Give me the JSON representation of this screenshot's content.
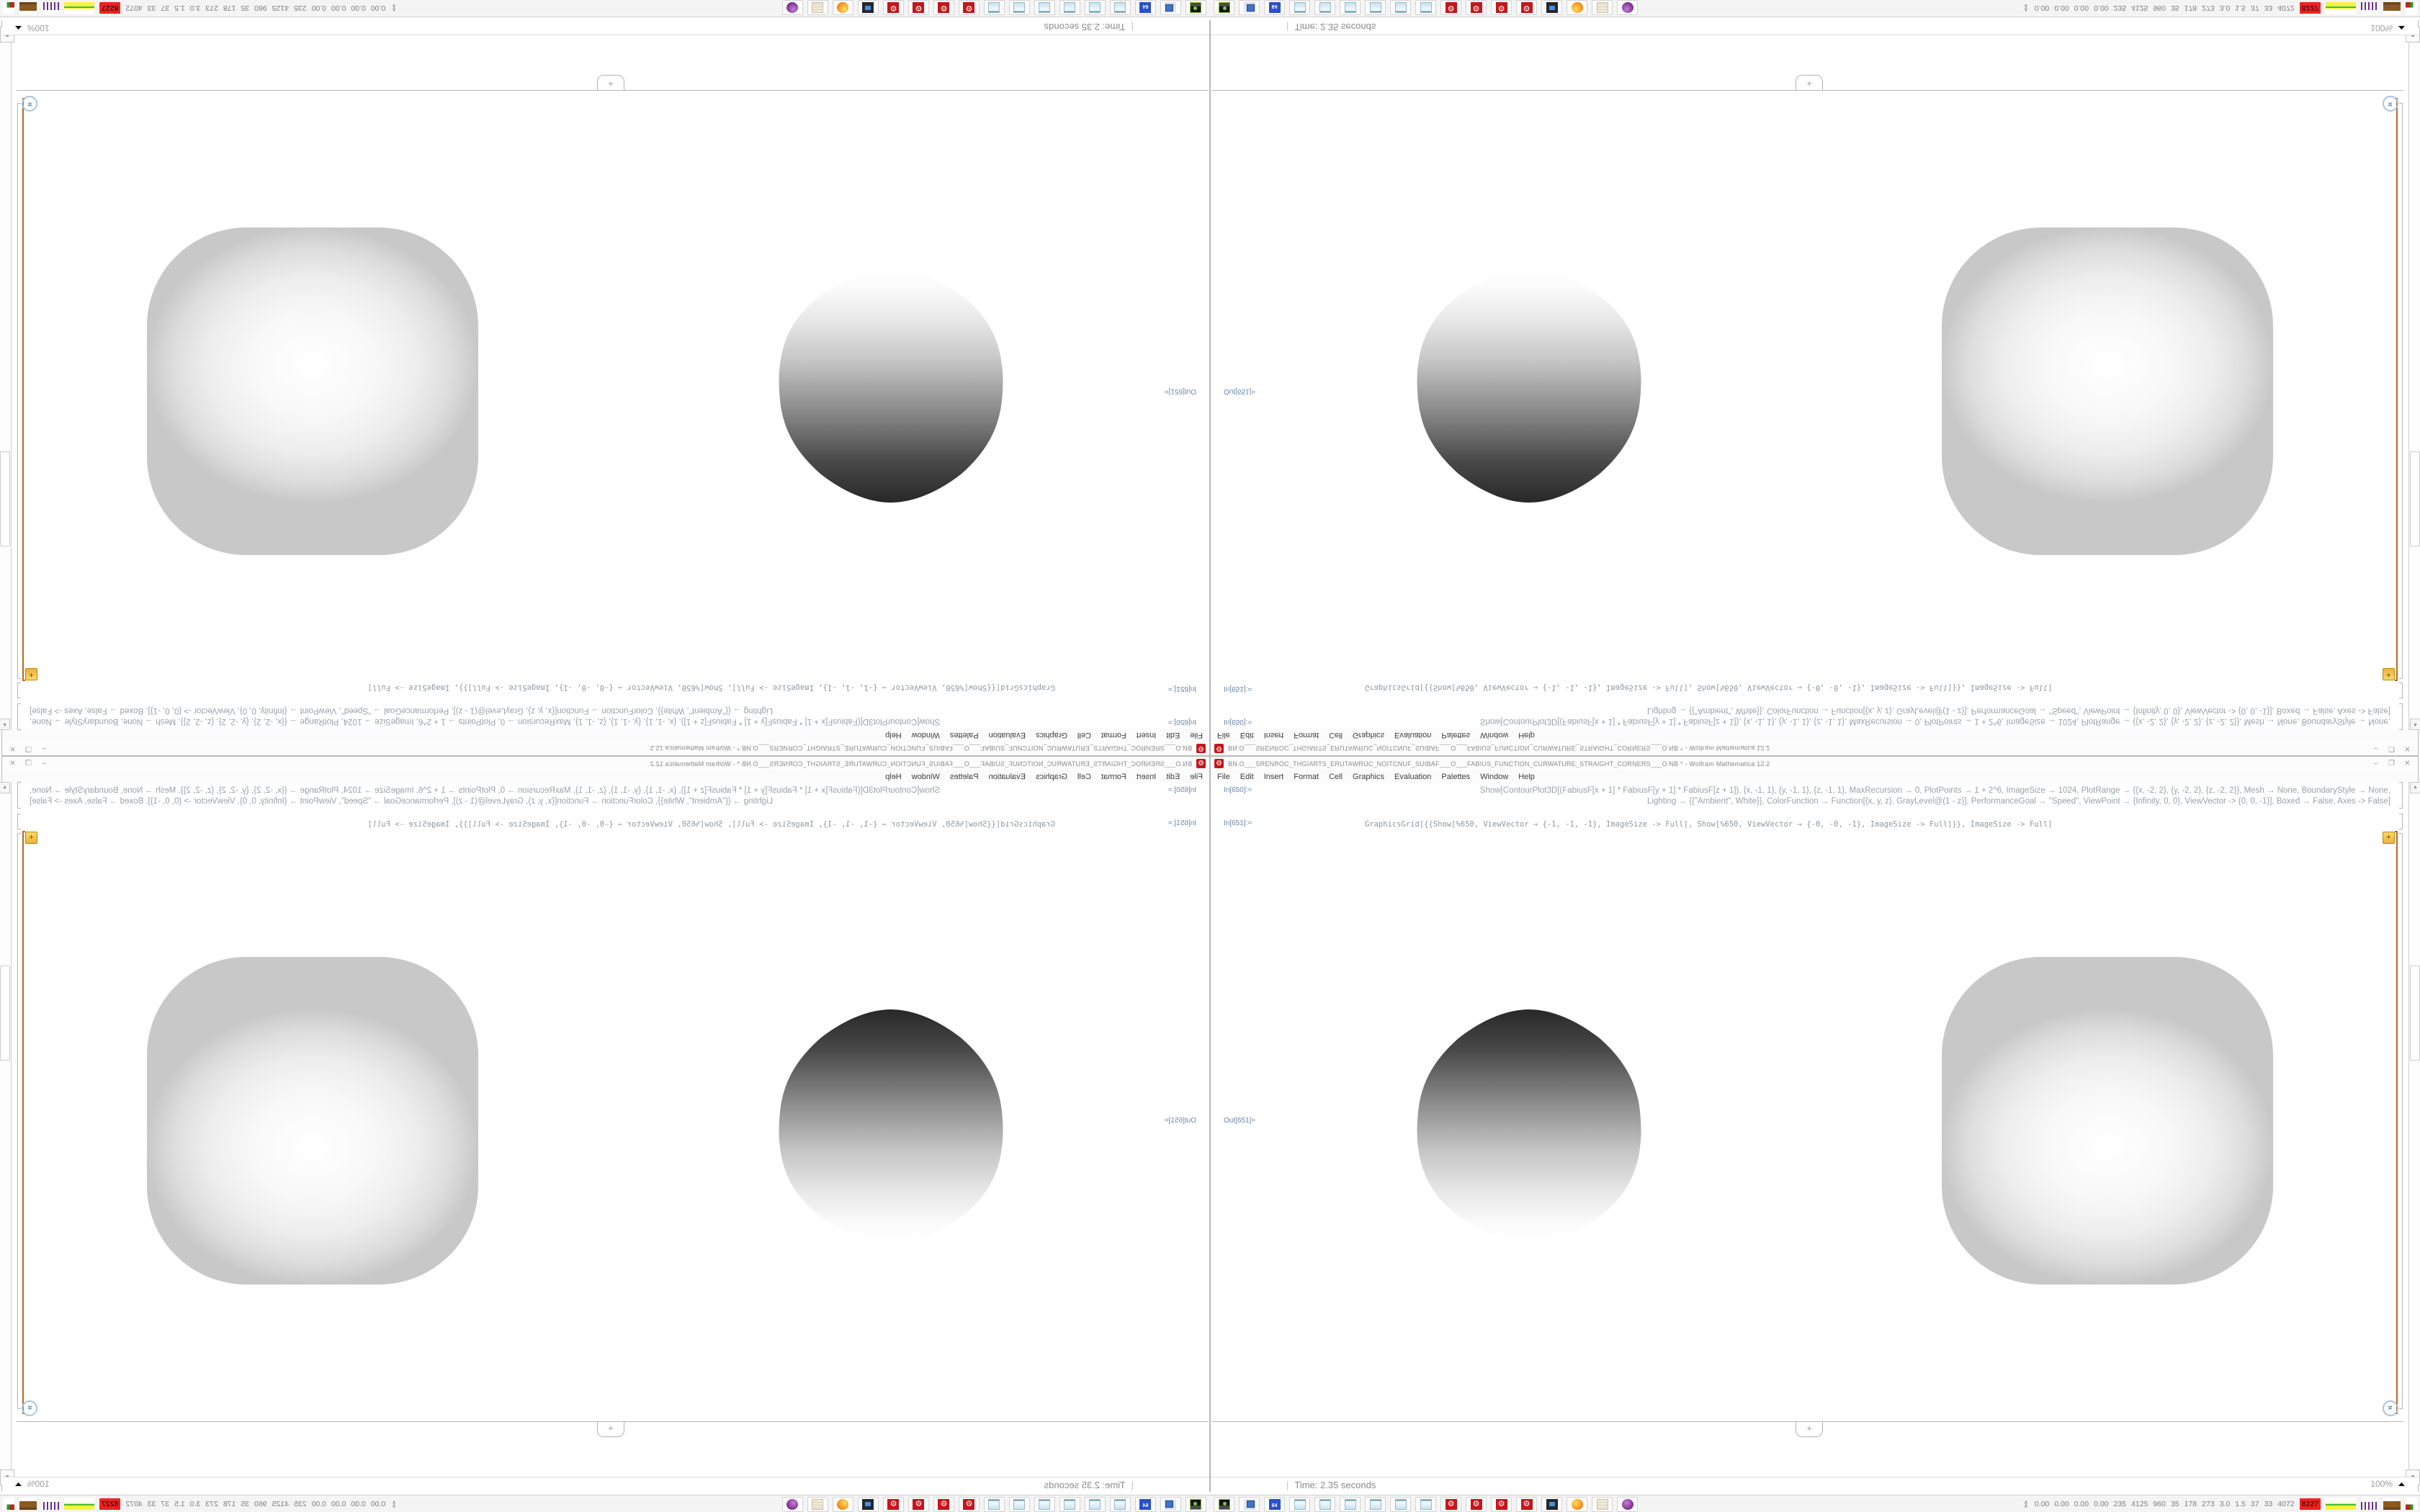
{
  "window": {
    "title": "BN.O___SRENROC_THGIARTS_ERUTAWRUC_NOITCNUF_SUIBAF___O___FABIUS_FUNCTION_CURWATURE_STRAIGHT_CORNERS___O.NB * - Wolfram Mathematica 12.2",
    "app_icon_glyph": "⚙",
    "controls": {
      "minimize": "–",
      "restore": "❐",
      "close": "✕"
    },
    "menu": [
      "File",
      "Edit",
      "Insert",
      "Format",
      "Cell",
      "Graphics",
      "Evaluation",
      "Palettes",
      "Window",
      "Help"
    ]
  },
  "cells": {
    "in650_label": "In[650]:=",
    "in650_line1": "Show[ContourPlot3D[(FabiusF[x + 1] * FabiusF[y + 1] * FabiusF[z + 1]), {x, -1, 1}, {y, -1, 1}, {z, -1, 1}, MaxRecursion → 0, PlotPoints → 1 + 2^6, ImageSize → 1024, PlotRange → {{x, -2, 2}, {y, -2, 2}, {z, -2, 2}}, Mesh → None, BoundaryStyle → None,",
    "in650_line2": "Lighting → {{\"Ambient\", White}}, ColorFunction → Function[{x, y, z}, GrayLevel@(1 - z)], PerformanceGoal → \"Speed\", ViewPoint → {Infinity, 0, 0}, ViewVector -> {0, 0, -1}], Boxed → False, Axes -> False]",
    "in651_label": "In[651]:=",
    "in651_code": "GraphicsGrid[{{Show[%650, ViewVector → {-1, -1, -1}, ImageSize -> Full], Show[%650, ViewVector → {-0, -0, -1}, ImageSize -> Full]}}, ImageSize -> Full]",
    "out651_label": "Out[651]=",
    "suggestion_plus": "+",
    "insert_cell_tab": "+"
  },
  "scrollbar": {
    "up_glyph": "▲",
    "down_glyph": "▼",
    "more_output_glyph": "»"
  },
  "statusbar": {
    "divider": "|",
    "time": "Time: 2.35 seconds",
    "magnification": "100%",
    "mag_mound_glyph": "▲"
  },
  "taskbar": {
    "buttons": [
      {
        "name": "tape-recorder-icon",
        "glyph": ""
      },
      {
        "name": "my-computer-icon",
        "glyph": ""
      },
      {
        "name": "floppy-64-icon",
        "glyph": "64"
      },
      {
        "name": "notepad-icon",
        "glyph": ""
      },
      {
        "name": "notepad-icon",
        "glyph": ""
      },
      {
        "name": "notepad-icon",
        "glyph": ""
      },
      {
        "name": "notepad-icon",
        "glyph": ""
      },
      {
        "name": "notepad-icon",
        "glyph": ""
      },
      {
        "name": "notepad-icon",
        "glyph": ""
      },
      {
        "name": "mathematica-icon",
        "glyph": "⚙"
      },
      {
        "name": "mathematica-icon",
        "glyph": "⚙"
      },
      {
        "name": "mathematica-icon",
        "glyph": "⚙"
      },
      {
        "name": "mathematica-icon",
        "glyph": "⚙"
      },
      {
        "name": "screenshot-camera-icon",
        "glyph": ""
      },
      {
        "name": "firefox-icon",
        "glyph": ""
      },
      {
        "name": "document-scroll-icon",
        "glyph": ""
      },
      {
        "name": "media-player-purple-icon",
        "glyph": ""
      }
    ],
    "tray": {
      "expand_glyph": "∧",
      "metrics": [
        "0.00",
        "0.00",
        "0.00",
        "0.00",
        "235",
        "4125",
        "960",
        "35",
        "178",
        "273",
        "3.0",
        "1.5",
        "37",
        "33",
        "4072"
      ],
      "alert_value": "8227",
      "meters": [
        "load-meter-yellow",
        "net-meter-purple",
        "disk-meter-brown",
        "io-meter-red-green"
      ]
    }
  },
  "colors": {
    "evaluation_bracket_orange": "#c2651f",
    "cell_label_blue": "#6b84a4",
    "mathematica_red": "#c4161c",
    "tray_alert_red": "#ee2222",
    "blob_dark": "#282828"
  }
}
